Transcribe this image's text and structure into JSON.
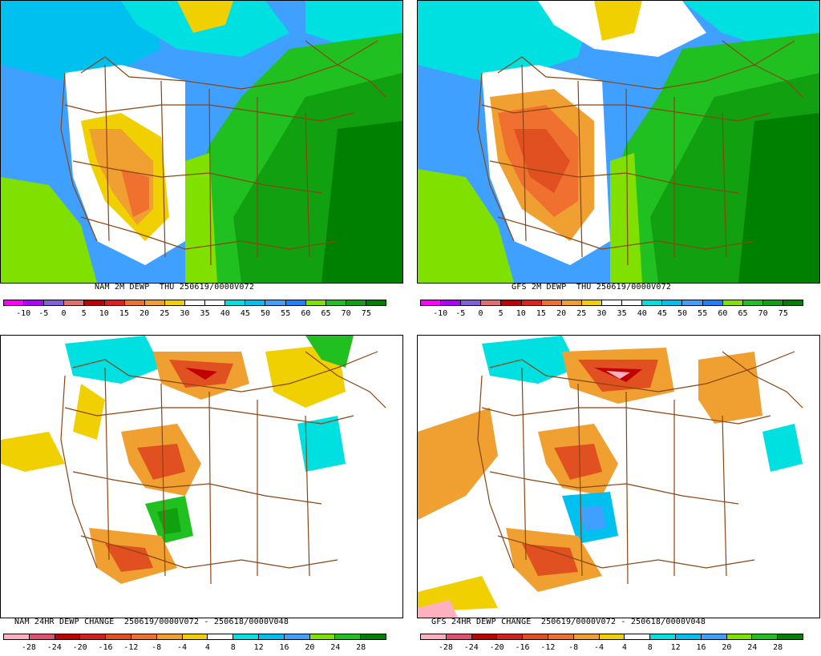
{
  "panels": [
    {
      "id": "nam-2m-dewp",
      "caption": "NAM 2M DEWP  THU 250619/0000V072",
      "legend_labels": [
        "-10",
        "-5",
        "0",
        "5",
        "10",
        "15",
        "20",
        "25",
        "30",
        "35",
        "40",
        "45",
        "50",
        "55",
        "60",
        "65",
        "70",
        "75"
      ],
      "legend_colors": [
        "#ff00ff",
        "#b000ff",
        "#8060d8",
        "#e07070",
        "#c00000",
        "#e02020",
        "#f07030",
        "#f0a030",
        "#f0d000",
        "#ffffff",
        "#ffffff",
        "#00e0e0",
        "#00c0f0",
        "#40a0ff",
        "#2080ff",
        "#80e000",
        "#20c020",
        "#10a010",
        "#008000"
      ],
      "kind": "dewpoint"
    },
    {
      "id": "gfs-2m-dewp",
      "caption": "GFS 2M DEWP  THU 250619/0000V072",
      "legend_labels": [
        "-10",
        "-5",
        "0",
        "5",
        "10",
        "15",
        "20",
        "25",
        "30",
        "35",
        "40",
        "45",
        "50",
        "55",
        "60",
        "65",
        "70",
        "75"
      ],
      "legend_colors": [
        "#ff00ff",
        "#b000ff",
        "#8060d8",
        "#e07070",
        "#c00000",
        "#e02020",
        "#f07030",
        "#f0a030",
        "#f0d000",
        "#ffffff",
        "#ffffff",
        "#00e0e0",
        "#00c0f0",
        "#40a0ff",
        "#2080ff",
        "#80e000",
        "#20c020",
        "#10a010",
        "#008000"
      ],
      "kind": "dewpoint"
    },
    {
      "id": "nam-24hr-dewp-change",
      "caption": "NAM 24HR DEWP CHANGE  250619/0000V072 - 250618/0000V048",
      "legend_labels": [
        "-28",
        "-24",
        "-20",
        "-16",
        "-12",
        "-8",
        "-4",
        "4",
        "8",
        "12",
        "16",
        "20",
        "24",
        "28"
      ],
      "legend_colors": [
        "#ffb0c0",
        "#e05070",
        "#c00000",
        "#d02020",
        "#e05020",
        "#f07030",
        "#f0a030",
        "#f0d000",
        "#ffffff",
        "#00e0e0",
        "#00c0f0",
        "#40a0ff",
        "#80e000",
        "#20c020",
        "#008000"
      ],
      "kind": "change"
    },
    {
      "id": "gfs-24hr-dewp-change",
      "caption": "GFS 24HR DEWP CHANGE  250619/0000V072 - 250618/0000V048",
      "legend_labels": [
        "-28",
        "-24",
        "-20",
        "-16",
        "-12",
        "-8",
        "-4",
        "4",
        "8",
        "12",
        "16",
        "20",
        "24",
        "28"
      ],
      "legend_colors": [
        "#ffb0c0",
        "#e05070",
        "#c00000",
        "#d02020",
        "#e05020",
        "#f07030",
        "#f0a030",
        "#f0d000",
        "#ffffff",
        "#00e0e0",
        "#00c0f0",
        "#40a0ff",
        "#80e000",
        "#20c020",
        "#008000"
      ],
      "kind": "change"
    }
  ]
}
